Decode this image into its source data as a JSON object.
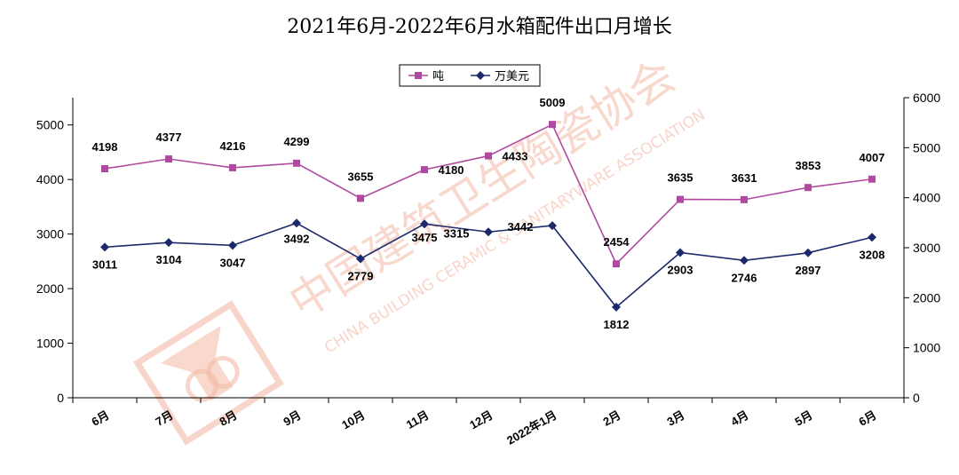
{
  "chart_data": {
    "type": "line",
    "title": "2021年6月-2022年6月水箱配件出口月增长",
    "categories": [
      "6月",
      "7月",
      "8月",
      "9月",
      "10月",
      "11月",
      "12月",
      "2022年1月",
      "2月",
      "3月",
      "4月",
      "5月",
      "6月"
    ],
    "series": [
      {
        "name": "吨",
        "axis": "left",
        "color": "#b04aa0",
        "marker": "square",
        "values": [
          4198,
          4377,
          4216,
          4299,
          3655,
          4180,
          4433,
          5009,
          2454,
          3635,
          3631,
          3853,
          4007
        ]
      },
      {
        "name": "万美元",
        "axis": "right",
        "color": "#1c2a6b",
        "marker": "diamond",
        "values": [
          3011,
          3104,
          3047,
          3492,
          2779,
          3475,
          3315,
          3442,
          1812,
          2903,
          2746,
          2897,
          3208
        ]
      }
    ],
    "y_left": {
      "min": 0,
      "max": 5500,
      "ticks": [
        0,
        1000,
        2000,
        3000,
        4000,
        5000
      ]
    },
    "y_right": {
      "min": 0,
      "max": 6000,
      "ticks": [
        0,
        1000,
        2000,
        3000,
        4000,
        5000,
        6000
      ]
    },
    "grid": false,
    "legend": "top-center"
  },
  "watermark": {
    "text_cn": "中国建筑卫生陶瓷协会",
    "text_en": "CHINA BUILDING CERAMIC & SANITARYWARE ASSOCIATION",
    "color": "#f4b9a6"
  }
}
